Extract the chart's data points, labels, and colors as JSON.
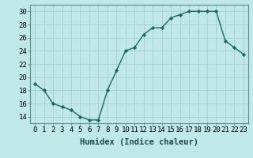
{
  "x": [
    0,
    1,
    2,
    3,
    4,
    5,
    6,
    7,
    8,
    9,
    10,
    11,
    12,
    13,
    14,
    15,
    16,
    17,
    18,
    19,
    20,
    21,
    22,
    23
  ],
  "y": [
    19,
    18,
    16,
    15.5,
    15,
    14,
    13.5,
    13.5,
    18,
    21,
    24,
    24.5,
    26.5,
    27.5,
    27.5,
    29,
    29.5,
    30,
    30,
    30,
    30,
    25.5,
    24.5,
    23.5
  ],
  "line_color": "#1a6b5a",
  "marker_color": "#1a6b5a",
  "bg_color": "#c0e8e8",
  "grid_color": "#a8d4d4",
  "xlabel": "Humidex (Indice chaleur)",
  "ylim": [
    13,
    31
  ],
  "xlim": [
    -0.5,
    23.5
  ],
  "yticks": [
    14,
    16,
    18,
    20,
    22,
    24,
    26,
    28,
    30
  ],
  "xtick_labels": [
    "0",
    "1",
    "2",
    "3",
    "4",
    "5",
    "6",
    "7",
    "8",
    "9",
    "10",
    "11",
    "12",
    "13",
    "14",
    "15",
    "16",
    "17",
    "18",
    "19",
    "20",
    "21",
    "22",
    "23"
  ],
  "tick_fontsize": 6.5,
  "xlabel_fontsize": 7.5
}
